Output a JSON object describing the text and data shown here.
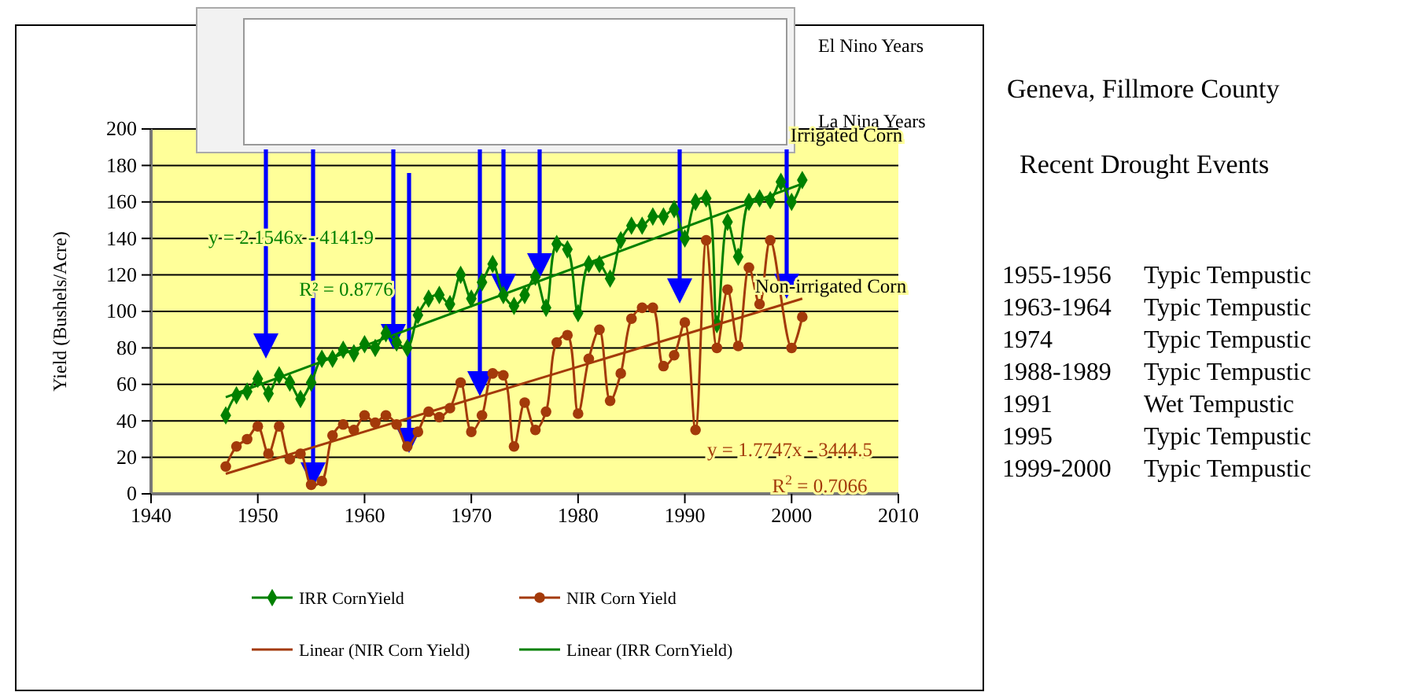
{
  "chart_data": {
    "type": "line",
    "title": "Geneva, Fillmore County",
    "subtitle": "Recent Drought Events",
    "ylabel": "Yield (Bushels/Acre)",
    "xlim": [
      1940,
      2010
    ],
    "xticks": [
      1940,
      1950,
      1960,
      1970,
      1980,
      1990,
      2000,
      2010
    ],
    "ylim": [
      0,
      200
    ],
    "yticks": [
      0,
      20,
      40,
      60,
      80,
      100,
      120,
      140,
      160,
      180,
      200
    ],
    "grid": "y",
    "legend": "bottom",
    "series": [
      {
        "name": "IRR CornYield",
        "color": "#008000",
        "marker": "diamond",
        "x": [
          1947,
          1948,
          1949,
          1950,
          1951,
          1952,
          1953,
          1954,
          1955,
          1956,
          1957,
          1958,
          1959,
          1960,
          1961,
          1962,
          1963,
          1964,
          1965,
          1966,
          1967,
          1968,
          1969,
          1970,
          1971,
          1972,
          1973,
          1974,
          1975,
          1976,
          1977,
          1978,
          1979,
          1980,
          1981,
          1982,
          1983,
          1984,
          1985,
          1986,
          1987,
          1988,
          1989,
          1990,
          1991,
          1992,
          1993,
          1994,
          1995,
          1996,
          1997,
          1998,
          1999,
          2000,
          2001
        ],
        "values": [
          43,
          54,
          56,
          63,
          55,
          65,
          61,
          52,
          61,
          74,
          74,
          79,
          77,
          82,
          80,
          88,
          83,
          80,
          98,
          107,
          109,
          104,
          120,
          107,
          116,
          126,
          109,
          103,
          109,
          119,
          102,
          137,
          134,
          99,
          126,
          126,
          118,
          139,
          147,
          147,
          152,
          152,
          156,
          140,
          160,
          162,
          93,
          149,
          130,
          160,
          162,
          161,
          171,
          160,
          172
        ]
      },
      {
        "name": "NIR Corn Yield",
        "color": "#a33a0a",
        "marker": "circle",
        "x": [
          1947,
          1948,
          1949,
          1950,
          1951,
          1952,
          1953,
          1954,
          1955,
          1956,
          1957,
          1958,
          1959,
          1960,
          1961,
          1962,
          1963,
          1964,
          1965,
          1966,
          1967,
          1968,
          1969,
          1970,
          1971,
          1972,
          1973,
          1974,
          1975,
          1976,
          1977,
          1978,
          1979,
          1980,
          1981,
          1982,
          1983,
          1984,
          1985,
          1986,
          1987,
          1988,
          1989,
          1990,
          1991,
          1992,
          1993,
          1994,
          1995,
          1996,
          1997,
          1998,
          2000,
          2001
        ],
        "values": [
          15,
          26,
          30,
          37,
          22,
          37,
          19,
          22,
          5,
          7,
          32,
          38,
          35,
          43,
          39,
          43,
          38,
          26,
          34,
          45,
          42,
          47,
          61,
          34,
          43,
          66,
          65,
          26,
          50,
          35,
          45,
          83,
          87,
          44,
          74,
          90,
          51,
          66,
          96,
          102,
          102,
          70,
          76,
          94,
          35,
          139,
          80,
          112,
          81,
          124,
          104,
          139,
          80,
          97
        ]
      },
      {
        "name": "Linear (NIR Corn Yield)",
        "color": "#a33a0a",
        "marker": "none",
        "x": [
          1947,
          2001
        ],
        "values": [
          11,
          107
        ]
      },
      {
        "name": "Linear (IRR CornYield)",
        "color": "#008000",
        "marker": "none",
        "x": [
          1947,
          2001
        ],
        "values": [
          53,
          170
        ]
      }
    ],
    "annotations": [
      "El Nino Years",
      "La Nina Years",
      "1955-1956 Typic Tempustic",
      "1963-1964 Typic Tempustic",
      "1974 Typic Tempustic",
      "1988-1989 Typic Tempustic",
      "1991 Wet Tempustic",
      "1995 Typic Tempustic",
      "1999-2000 Typic Tempustic",
      "Irrigated Corn",
      "Non-irrigated Corn",
      "y = 2.1546x - 4141.9",
      "R² = 0.8776",
      "y = 1.7747x - 3444.5",
      "R$^{2}$ = 0.7066"
    ]
  }
}
